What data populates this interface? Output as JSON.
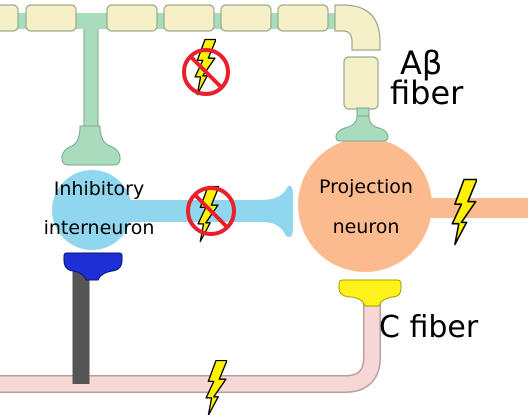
{
  "labels": {
    "abeta_fiber_line1": "Aβ",
    "abeta_fiber_line2": "fiber",
    "c_fiber": "C fiber",
    "inhibitory_line1": "Inhibitory",
    "inhibitory_line2": "interneuron",
    "projection_line1": "Projection",
    "projection_line2": "neuron"
  },
  "icons": {
    "signal": "lightning-bolt-icon",
    "blocked": "blocked-signal-icon"
  },
  "colors": {
    "myelin_fill": "#f5f0c8",
    "myelin_stroke": "#9aaa88",
    "abeta_axon": "#a8dcbc",
    "inhibitory_soma": "#8fd6ee",
    "projection_soma": "#fcbb8f",
    "c_fiber_axon": "#f7d6d6",
    "c_fiber_terminal": "#fff21a",
    "inhibitory_terminal": "#1f2fd6",
    "bolt_fill": "#fff200",
    "block_red": "#e8202a"
  }
}
